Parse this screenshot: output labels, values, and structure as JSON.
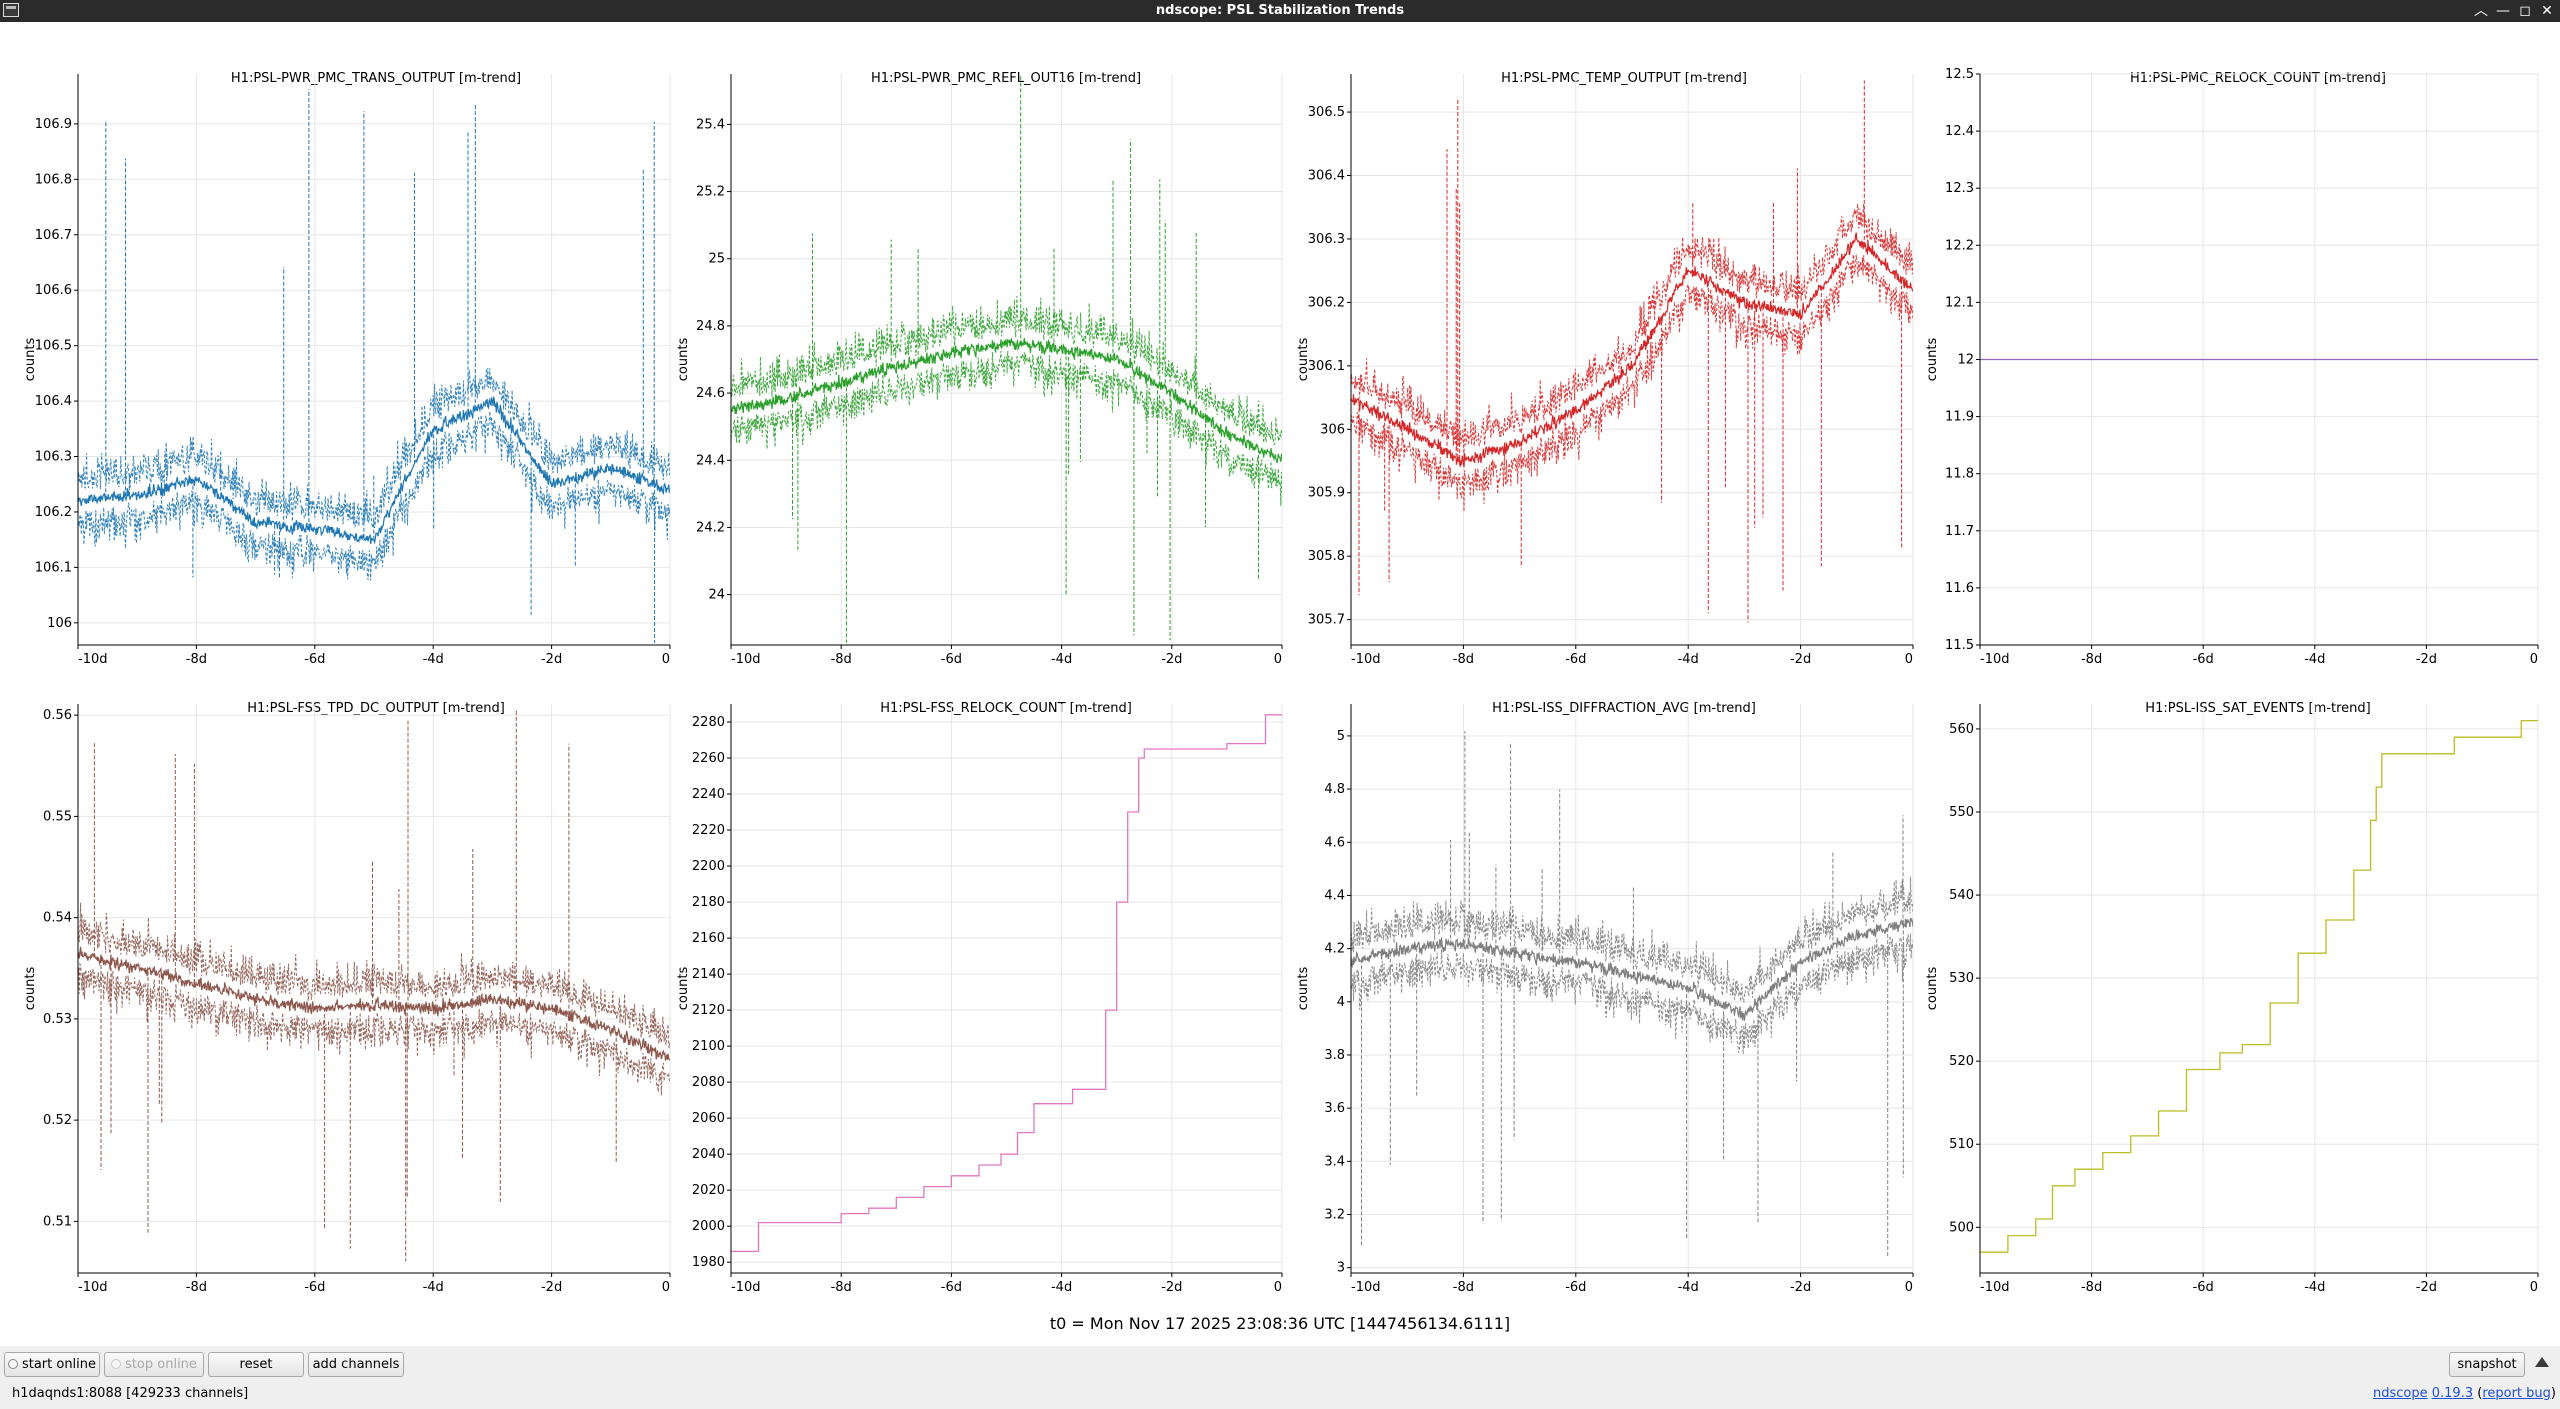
{
  "window": {
    "title": "ndscope: PSL Stabilization Trends"
  },
  "plots": [
    {
      "title": "H1:PSL-PWR_PMC_TRANS_OUTPUT [m-trend]",
      "ylabel": "counts",
      "color": "#1f77b4",
      "kind": "noise",
      "yticks": [
        "106",
        "106.1",
        "106.2",
        "106.3",
        "106.4",
        "106.5",
        "106.6",
        "106.7",
        "106.8",
        "106.9"
      ],
      "ylim": [
        105.96,
        106.99
      ],
      "xticks": [
        "-10d",
        "-8d",
        "-6d",
        "-4d",
        "-2d",
        "0"
      ]
    },
    {
      "title": "H1:PSL-PWR_PMC_REFL_OUT16 [m-trend]",
      "ylabel": "counts",
      "color": "#2ca02c",
      "kind": "noise",
      "yticks": [
        "24",
        "24.2",
        "24.4",
        "24.6",
        "24.8",
        "25",
        "25.2",
        "25.4"
      ],
      "ylim": [
        23.85,
        25.55
      ],
      "xticks": [
        "-10d",
        "-8d",
        "-6d",
        "-4d",
        "-2d",
        "0"
      ]
    },
    {
      "title": "H1:PSL-PMC_TEMP_OUTPUT [m-trend]",
      "ylabel": "counts",
      "color": "#d62728",
      "kind": "noise",
      "yticks": [
        "305.7",
        "305.8",
        "305.9",
        "306",
        "306.1",
        "306.2",
        "306.3",
        "306.4",
        "306.5"
      ],
      "ylim": [
        305.66,
        306.56
      ],
      "xticks": [
        "-10d",
        "-8d",
        "-6d",
        "-4d",
        "-2d",
        "0"
      ]
    },
    {
      "title": "H1:PSL-PMC_RELOCK_COUNT [m-trend]",
      "ylabel": "counts",
      "color": "#9467bd",
      "kind": "flat",
      "yticks": [
        "11.5",
        "11.6",
        "11.7",
        "11.8",
        "11.9",
        "12",
        "12.1",
        "12.2",
        "12.3",
        "12.4",
        "12.5"
      ],
      "ylim": [
        11.5,
        12.5
      ],
      "xticks": [
        "-10d",
        "-8d",
        "-6d",
        "-4d",
        "-2d",
        "0"
      ]
    },
    {
      "title": "H1:PSL-FSS_TPD_DC_OUTPUT [m-trend]",
      "ylabel": "counts",
      "color": "#8c564b",
      "kind": "noise",
      "yticks": [
        "0.51",
        "0.52",
        "0.53",
        "0.54",
        "0.55",
        "0.56"
      ],
      "ylim": [
        0.5049,
        0.5611
      ],
      "xticks": [
        "-10d",
        "-8d",
        "-6d",
        "-4d",
        "-2d",
        "0"
      ]
    },
    {
      "title": "H1:PSL-FSS_RELOCK_COUNT [m-trend]",
      "ylabel": "counts",
      "color": "#e377c2",
      "kind": "step",
      "yticks": [
        "1980",
        "2000",
        "2020",
        "2040",
        "2060",
        "2080",
        "2100",
        "2120",
        "2140",
        "2160",
        "2180",
        "2200",
        "2220",
        "2240",
        "2260",
        "2280"
      ],
      "ylim": [
        1974,
        2290
      ],
      "xticks": [
        "-10d",
        "-8d",
        "-6d",
        "-4d",
        "-2d",
        "0"
      ]
    },
    {
      "title": "H1:PSL-ISS_DIFFRACTION_AVG [m-trend]",
      "ylabel": "counts",
      "color": "#7f7f7f",
      "kind": "noise",
      "yticks": [
        "3",
        "3.2",
        "3.4",
        "3.6",
        "3.8",
        "4",
        "4.2",
        "4.4",
        "4.6",
        "4.8",
        "5"
      ],
      "ylim": [
        2.98,
        5.12
      ],
      "xticks": [
        "-10d",
        "-8d",
        "-6d",
        "-4d",
        "-2d",
        "0"
      ]
    },
    {
      "title": "H1:PSL-ISS_SAT_EVENTS [m-trend]",
      "ylabel": "counts",
      "color": "#bcbd22",
      "kind": "step",
      "yticks": [
        "500",
        "510",
        "520",
        "530",
        "540",
        "550",
        "560"
      ],
      "ylim": [
        494.5,
        563
      ],
      "xticks": [
        "-10d",
        "-8d",
        "-6d",
        "-4d",
        "-2d",
        "0"
      ]
    }
  ],
  "chart_data": [
    {
      "type": "line",
      "title": "H1:PSL-PWR_PMC_TRANS_OUTPUT [m-trend]",
      "ylabel": "counts",
      "xlabel": "",
      "ylim": [
        105.96,
        106.99
      ],
      "xlim": [
        -10,
        0
      ],
      "x": [
        -10,
        -9,
        -8,
        -7,
        -6,
        -5,
        -4,
        -3,
        -2,
        -1,
        0
      ],
      "series": [
        {
          "values": [
            106.22,
            106.23,
            106.26,
            106.18,
            106.17,
            106.15,
            106.35,
            106.4,
            106.25,
            106.28,
            106.24
          ]
        }
      ]
    },
    {
      "type": "line",
      "title": "H1:PSL-PWR_PMC_REFL_OUT16 [m-trend]",
      "ylabel": "counts",
      "xlabel": "",
      "ylim": [
        23.85,
        25.55
      ],
      "xlim": [
        -10,
        0
      ],
      "x": [
        -10,
        -9,
        -8,
        -7,
        -6,
        -5,
        -4,
        -3,
        -2,
        -1,
        0
      ],
      "series": [
        {
          "values": [
            24.55,
            24.58,
            24.63,
            24.68,
            24.72,
            24.75,
            24.73,
            24.7,
            24.6,
            24.48,
            24.4
          ]
        }
      ]
    },
    {
      "type": "line",
      "title": "H1:PSL-PMC_TEMP_OUTPUT [m-trend]",
      "ylabel": "counts",
      "xlabel": "",
      "ylim": [
        305.66,
        306.56
      ],
      "xlim": [
        -10,
        0
      ],
      "x": [
        -10,
        -9,
        -8,
        -7,
        -6,
        -5,
        -4,
        -3,
        -2,
        -1,
        0
      ],
      "series": [
        {
          "values": [
            306.05,
            306.0,
            305.95,
            305.98,
            306.03,
            306.1,
            306.25,
            306.2,
            306.18,
            306.3,
            306.22
          ]
        }
      ]
    },
    {
      "type": "line",
      "title": "H1:PSL-PMC_RELOCK_COUNT [m-trend]",
      "ylabel": "counts",
      "xlabel": "",
      "ylim": [
        11.5,
        12.5
      ],
      "xlim": [
        -10,
        0
      ],
      "x": [
        -10,
        0
      ],
      "series": [
        {
          "values": [
            12,
            12
          ]
        }
      ]
    },
    {
      "type": "line",
      "title": "H1:PSL-FSS_TPD_DC_OUTPUT [m-trend]",
      "ylabel": "counts",
      "xlabel": "",
      "ylim": [
        0.5049,
        0.5611
      ],
      "xlim": [
        -10,
        0
      ],
      "x": [
        -10,
        -9,
        -8,
        -7,
        -6,
        -5,
        -4,
        -3,
        -2,
        -1,
        0
      ],
      "series": [
        {
          "values": [
            0.5365,
            0.535,
            0.5335,
            0.532,
            0.531,
            0.5315,
            0.531,
            0.532,
            0.531,
            0.529,
            0.526
          ]
        }
      ]
    },
    {
      "type": "line",
      "title": "H1:PSL-FSS_RELOCK_COUNT [m-trend]",
      "ylabel": "counts",
      "xlabel": "",
      "ylim": [
        1974,
        2290
      ],
      "xlim": [
        -10,
        0
      ],
      "x": [
        -10,
        -9.5,
        -9.5,
        -8,
        -7.5,
        -7,
        -6.5,
        -6,
        -5.5,
        -5.1,
        -4.8,
        -4.5,
        -3.8,
        -3.2,
        -3,
        -2.8,
        -2.6,
        -2.5,
        -1,
        -0.3,
        -0.3,
        0
      ],
      "series": [
        {
          "values": [
            1986,
            1986,
            2002,
            2007,
            2010,
            2016,
            2022,
            2028,
            2034,
            2040,
            2052,
            2068,
            2076,
            2120,
            2180,
            2230,
            2260,
            2265,
            2268,
            2275,
            2284,
            2284
          ]
        }
      ]
    },
    {
      "type": "line",
      "title": "H1:PSL-ISS_DIFFRACTION_AVG [m-trend]",
      "ylabel": "counts",
      "xlabel": "",
      "ylim": [
        2.98,
        5.12
      ],
      "xlim": [
        -10,
        0
      ],
      "x": [
        -10,
        -9,
        -8,
        -7,
        -6,
        -5,
        -4,
        -3,
        -2,
        -1,
        0
      ],
      "series": [
        {
          "values": [
            4.15,
            4.2,
            4.22,
            4.18,
            4.15,
            4.1,
            4.05,
            3.95,
            4.15,
            4.25,
            4.3
          ]
        }
      ]
    },
    {
      "type": "line",
      "title": "H1:PSL-ISS_SAT_EVENTS [m-trend]",
      "ylabel": "counts",
      "xlabel": "",
      "ylim": [
        494.5,
        563
      ],
      "xlim": [
        -10,
        0
      ],
      "x": [
        -10,
        -9.5,
        -9,
        -8.7,
        -8.3,
        -7.8,
        -7.3,
        -6.8,
        -6.3,
        -5.7,
        -5.3,
        -4.8,
        -4.3,
        -3.8,
        -3.3,
        -3,
        -2.9,
        -2.8,
        -2.6,
        -1.5,
        -0.3,
        0
      ],
      "series": [
        {
          "values": [
            497,
            499,
            501,
            505,
            507,
            509,
            511,
            514,
            519,
            521,
            522,
            527,
            533,
            537,
            543,
            549,
            553,
            557,
            557,
            559,
            561,
            561
          ]
        }
      ]
    }
  ],
  "footer": {
    "t0": "t0 = Mon Nov 17 2025 23:08:36 UTC [1447456134.6111]"
  },
  "buttons": {
    "start_online": "start online",
    "stop_online": "stop online",
    "reset": "reset",
    "add_channels": "add channels",
    "snapshot": "snapshot"
  },
  "status": {
    "server": "h1daqnds1:8088  [429233 channels]",
    "app_name": "ndscope",
    "version": "0.19.3",
    "paren_open": "(",
    "report_bug": "report bug",
    "paren_close": ")"
  }
}
